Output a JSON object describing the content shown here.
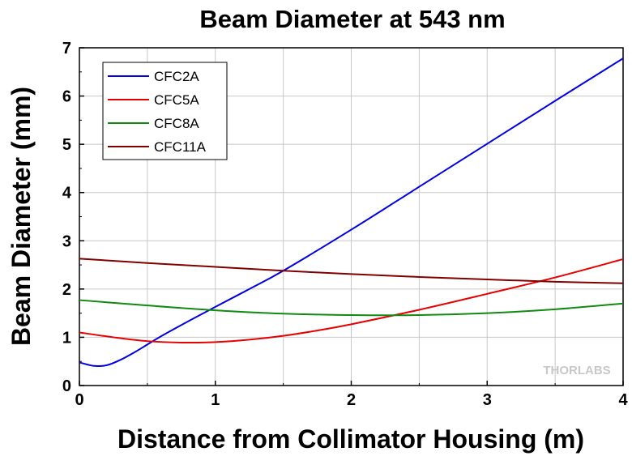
{
  "chart_data": {
    "type": "line",
    "title": "Beam Diameter at 543 nm",
    "xlabel": "Distance from Collimator Housing (m)",
    "ylabel": "Beam Diameter (mm)",
    "xlim": [
      0,
      4
    ],
    "ylim": [
      0,
      7
    ],
    "x_ticks": [
      "0",
      "1",
      "2",
      "3",
      "4"
    ],
    "y_ticks": [
      "0",
      "1",
      "2",
      "3",
      "4",
      "5",
      "6",
      "7"
    ],
    "grid": true,
    "legend_position": "top-left",
    "watermark": "THORLABS",
    "series": [
      {
        "name": "CFC2A",
        "color": "#0000e6",
        "x": [
          0,
          0.1,
          0.2,
          0.3,
          0.4,
          0.5,
          0.6,
          0.8,
          1.0,
          1.25,
          1.5,
          2.0,
          2.5,
          3.0,
          3.5,
          4.0
        ],
        "y": [
          0.48,
          0.41,
          0.42,
          0.53,
          0.68,
          0.85,
          1.02,
          1.33,
          1.63,
          2.0,
          2.38,
          3.23,
          4.12,
          5.01,
          5.9,
          6.78
        ]
      },
      {
        "name": "CFC5A",
        "color": "#e60000",
        "x": [
          0,
          0.25,
          0.5,
          0.75,
          1.0,
          1.25,
          1.5,
          1.75,
          2.0,
          2.5,
          3.0,
          3.5,
          4.0
        ],
        "y": [
          1.1,
          1.0,
          0.92,
          0.89,
          0.9,
          0.95,
          1.03,
          1.14,
          1.27,
          1.57,
          1.9,
          2.24,
          2.62
        ]
      },
      {
        "name": "CFC8A",
        "color": "#108a10",
        "x": [
          0,
          0.5,
          1.0,
          1.5,
          2.0,
          2.5,
          3.0,
          3.5,
          4.0
        ],
        "y": [
          1.77,
          1.66,
          1.56,
          1.49,
          1.46,
          1.46,
          1.5,
          1.58,
          1.7
        ]
      },
      {
        "name": "CFC11A",
        "color": "#800000",
        "x": [
          0,
          0.5,
          1.0,
          1.5,
          2.0,
          2.5,
          3.0,
          3.5,
          4.0
        ],
        "y": [
          2.63,
          2.54,
          2.46,
          2.38,
          2.31,
          2.25,
          2.2,
          2.15,
          2.12
        ]
      }
    ]
  }
}
